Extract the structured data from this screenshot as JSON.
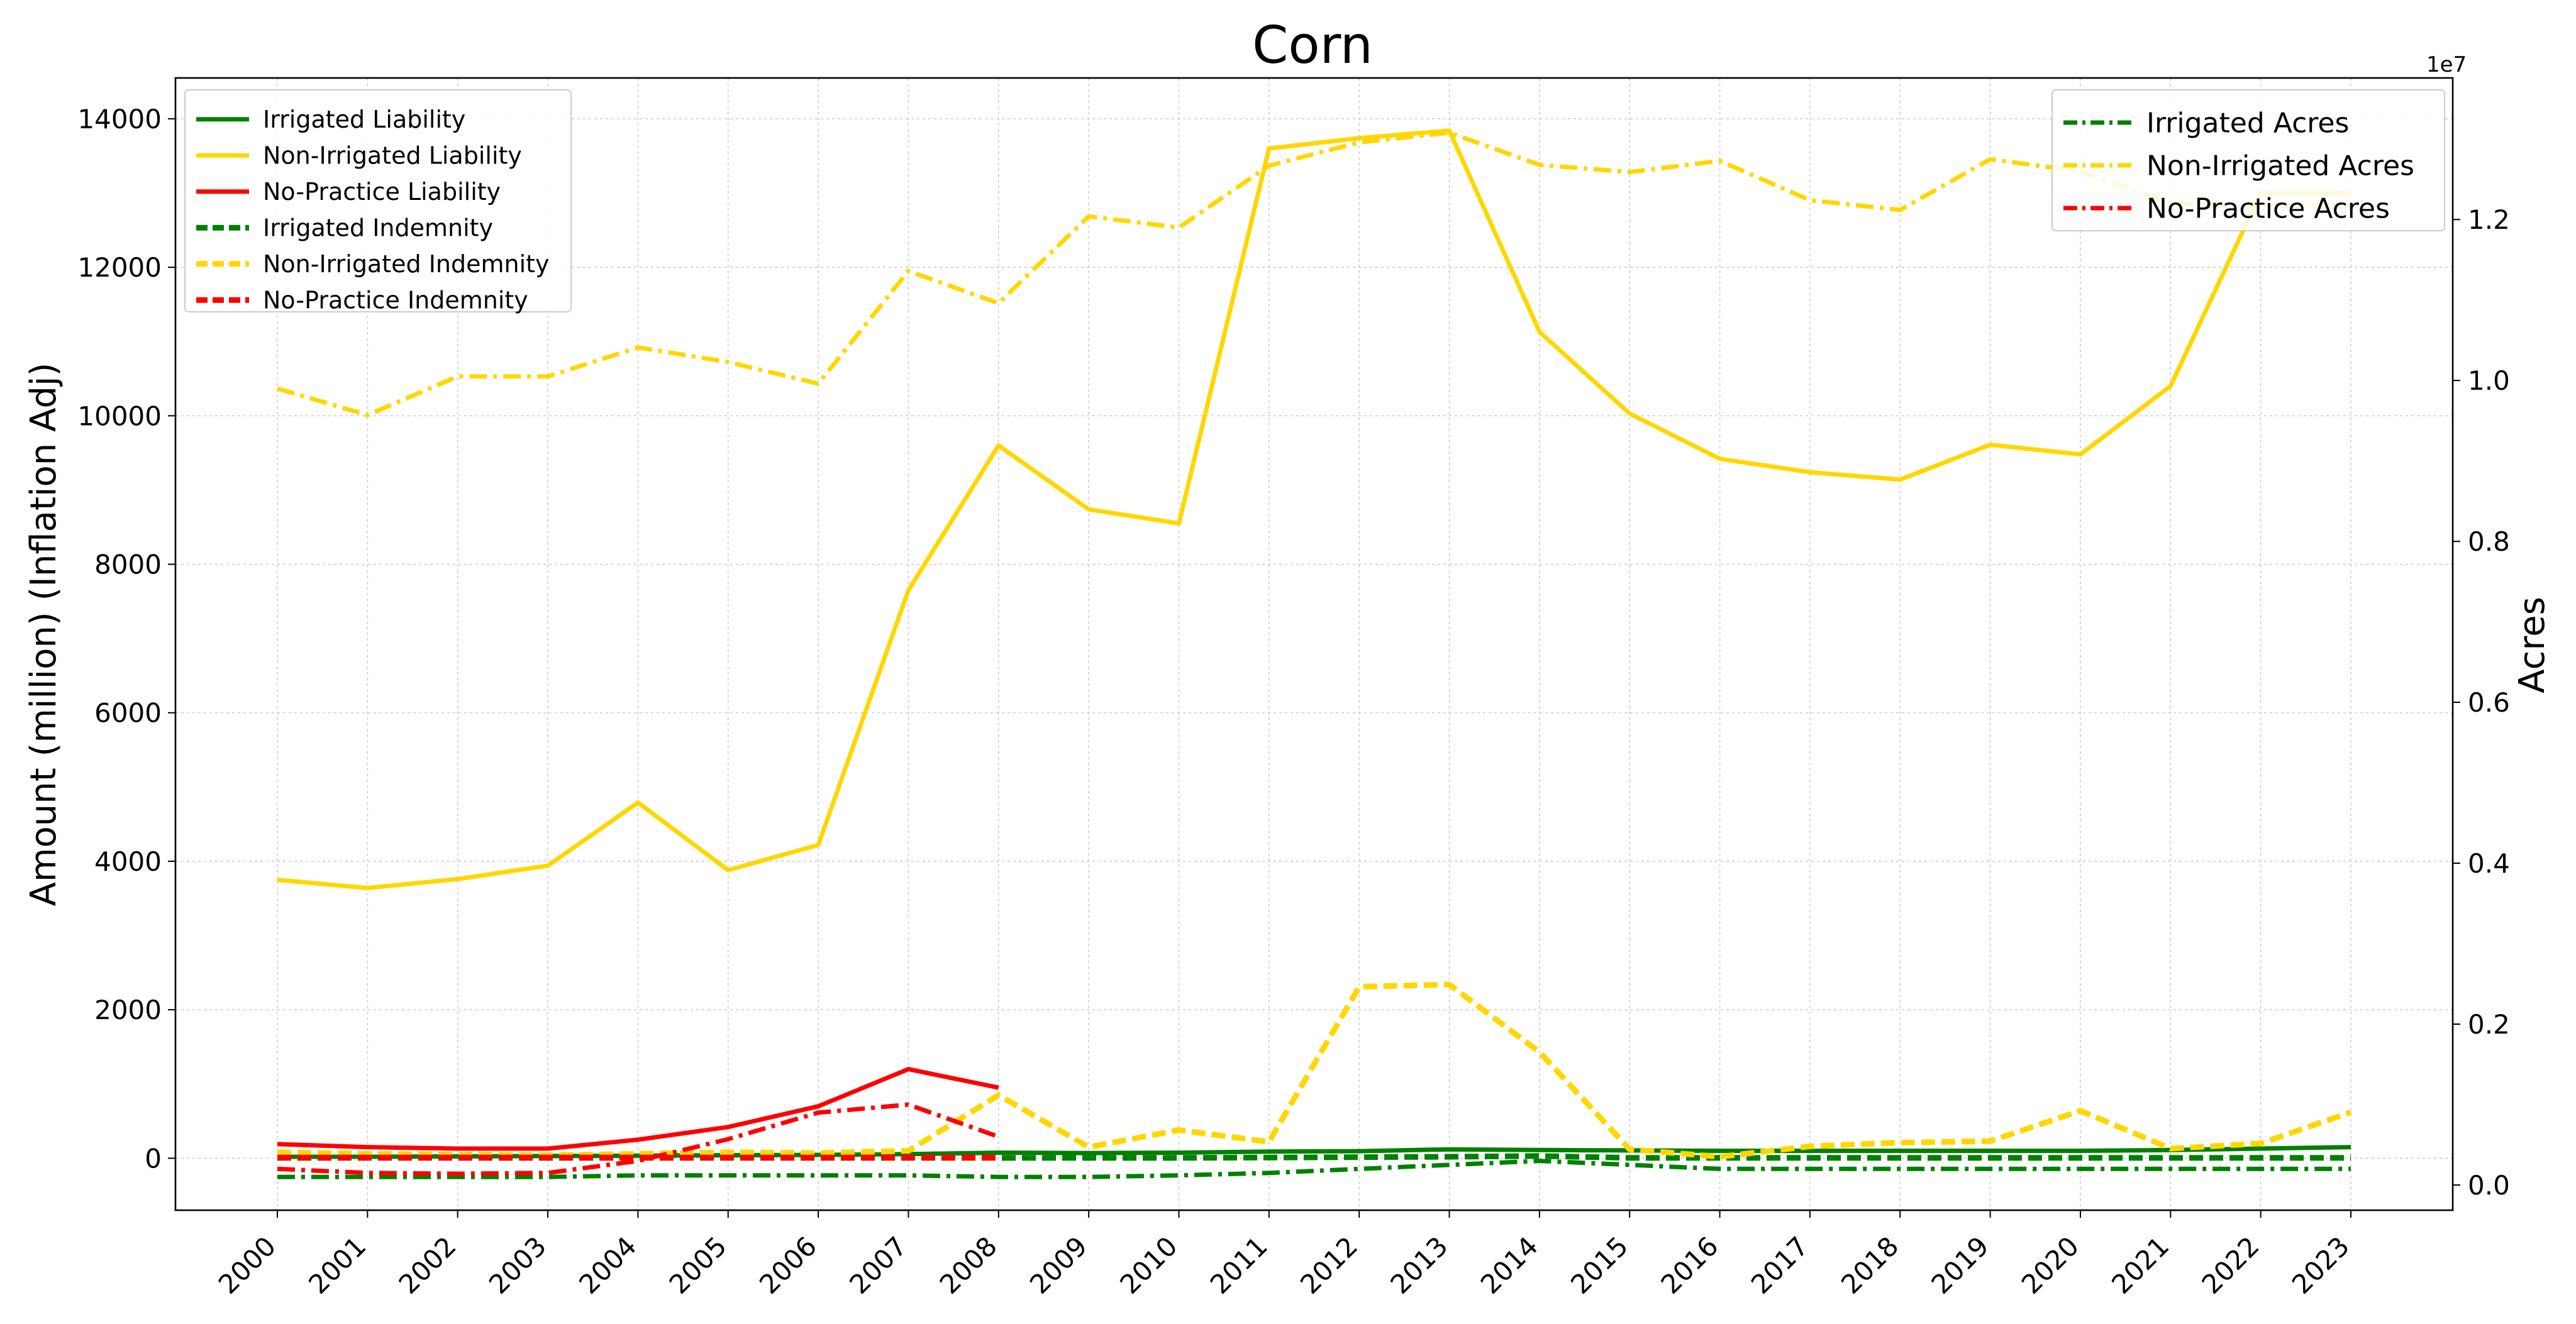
{
  "chart_data": {
    "type": "line",
    "title": "Corn",
    "ylabel": "Amount (million) (Inflation Adj)",
    "y2label": "Acres",
    "y2_offset_text": "1e7",
    "x": [
      "2000",
      "2001",
      "2002",
      "2003",
      "2004",
      "2005",
      "2006",
      "2007",
      "2008",
      "2009",
      "2010",
      "2011",
      "2012",
      "2013",
      "2014",
      "2015",
      "2016",
      "2017",
      "2018",
      "2019",
      "2020",
      "2021",
      "2022",
      "2023"
    ],
    "ylim": [
      -700,
      14550
    ],
    "yticks": [
      0,
      2000,
      4000,
      6000,
      8000,
      10000,
      12000,
      14000
    ],
    "y2lim": [
      -0.0313,
      1.376
    ],
    "y2ticks": [
      0.0,
      0.2,
      0.4,
      0.6,
      0.8,
      1.0,
      1.2
    ],
    "y2_tick_labels": [
      "0.0",
      "0.2",
      "0.4",
      "0.6",
      "0.8",
      "1.0",
      "1.2"
    ],
    "grid": true,
    "legend_left_placement": "upper-left",
    "legend_right_placement": "upper-right",
    "series": [
      {
        "name": "Irrigated Liability",
        "axis": "left",
        "style": "solid",
        "color": "#008000",
        "values": [
          20,
          20,
          25,
          30,
          35,
          40,
          45,
          55,
          75,
          70,
          75,
          90,
          95,
          120,
          110,
          105,
          100,
          100,
          100,
          100,
          100,
          110,
          130,
          150
        ]
      },
      {
        "name": "Non-Irrigated Liability",
        "axis": "left",
        "style": "solid",
        "color": "#FFD700",
        "values": [
          3750,
          3640,
          3760,
          3940,
          4790,
          3880,
          4220,
          7650,
          9600,
          8740,
          8550,
          13600,
          13740,
          13840,
          11130,
          10030,
          9420,
          9240,
          9140,
          9610,
          9480,
          10400,
          13000,
          13000
        ]
      },
      {
        "name": "No-Practice Liability",
        "axis": "left",
        "style": "solid",
        "color": "#FF0000",
        "values": [
          190,
          150,
          130,
          130,
          250,
          420,
          700,
          1200,
          950,
          null,
          null,
          null,
          null,
          null,
          null,
          null,
          null,
          null,
          null,
          null,
          null,
          null,
          null,
          null
        ]
      },
      {
        "name": "Irrigated Indemnity",
        "axis": "left",
        "style": "dashed",
        "color": "#008000",
        "values": [
          5,
          5,
          5,
          5,
          5,
          5,
          5,
          5,
          5,
          5,
          5,
          10,
          15,
          20,
          30,
          5,
          5,
          5,
          5,
          5,
          5,
          5,
          5,
          5
        ]
      },
      {
        "name": "Non-Irrigated Indemnity",
        "axis": "left",
        "style": "dashed",
        "color": "#FFD700",
        "values": [
          80,
          60,
          50,
          40,
          60,
          80,
          70,
          100,
          850,
          150,
          380,
          220,
          2310,
          2340,
          1430,
          120,
          20,
          160,
          210,
          230,
          640,
          130,
          200,
          620
        ]
      },
      {
        "name": "No-Practice Indemnity",
        "axis": "left",
        "style": "dashed",
        "color": "#FF0000",
        "values": [
          10,
          10,
          10,
          10,
          10,
          10,
          10,
          10,
          10,
          null,
          null,
          null,
          null,
          null,
          null,
          null,
          null,
          null,
          null,
          null,
          null,
          null,
          null,
          null
        ]
      },
      {
        "name": "Irrigated Acres",
        "axis": "right",
        "style": "dashdot",
        "color": "#008000",
        "values": [
          0.01,
          0.01,
          0.01,
          0.01,
          0.012,
          0.012,
          0.012,
          0.012,
          0.01,
          0.01,
          0.012,
          0.015,
          0.02,
          0.025,
          0.03,
          0.025,
          0.02,
          0.02,
          0.02,
          0.02,
          0.02,
          0.02,
          0.02,
          0.02
        ]
      },
      {
        "name": "Non-Irrigated Acres",
        "axis": "right",
        "style": "dashdot",
        "color": "#FFD700",
        "values": [
          0.99,
          0.957,
          1.005,
          1.005,
          1.041,
          1.023,
          0.996,
          1.136,
          1.096,
          1.204,
          1.19,
          1.267,
          1.296,
          1.308,
          1.268,
          1.259,
          1.273,
          1.224,
          1.212,
          1.275,
          1.26,
          1.22,
          1.217,
          1.217
        ]
      },
      {
        "name": "No-Practice Acres",
        "axis": "right",
        "style": "dashdot",
        "color": "#FF0000",
        "values": [
          0.02,
          0.015,
          0.014,
          0.015,
          0.03,
          0.057,
          0.09,
          0.1,
          0.06,
          null,
          null,
          null,
          null,
          null,
          null,
          null,
          null,
          null,
          null,
          null,
          null,
          null,
          null,
          null
        ]
      }
    ]
  }
}
